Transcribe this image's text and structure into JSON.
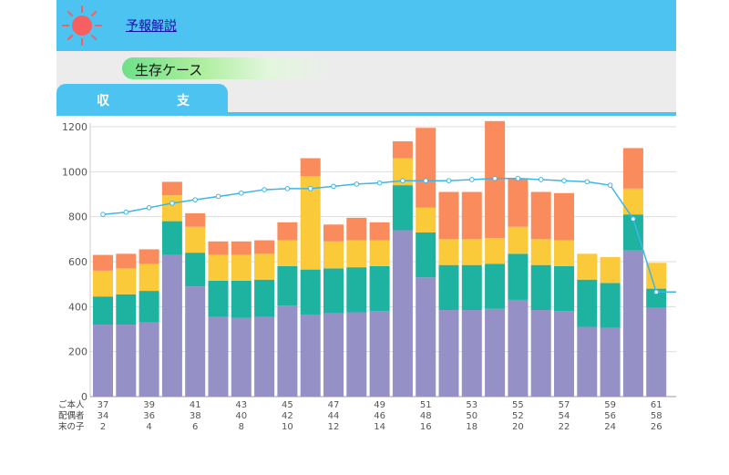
{
  "header": {
    "link_label": "予報解説",
    "sun_icon": "sun-icon"
  },
  "case_label": "生存ケース",
  "tabs": [
    {
      "chars": [
        "収",
        "支"
      ]
    }
  ],
  "colors": {
    "header": "#4cc3f0",
    "s1": "#9590c5",
    "s2": "#1eb2a0",
    "s3": "#fbca3a",
    "s4": "#f98b5c",
    "line": "#3bb6ea"
  },
  "chart_data": {
    "type": "bar",
    "stacked": true,
    "ylim": [
      0,
      1200
    ],
    "yticks": [
      0,
      200,
      400,
      600,
      800,
      1000,
      1200
    ],
    "grid": true,
    "row_labels": [
      "ご本人",
      "配偶者",
      "末の子"
    ],
    "label_rows": [
      [
        "37",
        "",
        "39",
        "",
        "41",
        "",
        "43",
        "",
        "45",
        "",
        "47",
        "",
        "49",
        "",
        "51",
        "",
        "53",
        "",
        "55",
        "",
        "57",
        "",
        "59",
        "",
        "61"
      ],
      [
        "34",
        "",
        "36",
        "",
        "38",
        "",
        "40",
        "",
        "42",
        "",
        "44",
        "",
        "46",
        "",
        "48",
        "",
        "50",
        "",
        "52",
        "",
        "54",
        "",
        "56",
        "",
        "58"
      ],
      [
        "2",
        "",
        "4",
        "",
        "6",
        "",
        "8",
        "",
        "10",
        "",
        "12",
        "",
        "14",
        "",
        "16",
        "",
        "18",
        "",
        "20",
        "",
        "22",
        "",
        "24",
        "",
        "26"
      ]
    ],
    "series": [
      {
        "values": [
          320,
          320,
          330,
          630,
          490,
          355,
          350,
          355,
          405,
          365,
          370,
          375,
          380,
          740,
          530,
          385,
          385,
          390,
          430,
          385,
          380,
          310,
          305,
          650,
          395
        ]
      },
      {
        "values": [
          125,
          135,
          140,
          150,
          150,
          160,
          165,
          165,
          175,
          200,
          200,
          200,
          200,
          200,
          200,
          200,
          200,
          200,
          205,
          200,
          200,
          210,
          200,
          160,
          85
        ]
      },
      {
        "values": [
          115,
          115,
          120,
          115,
          115,
          115,
          115,
          115,
          115,
          415,
          120,
          120,
          115,
          120,
          110,
          115,
          115,
          115,
          120,
          115,
          115,
          115,
          115,
          115,
          115
        ]
      },
      {
        "values": [
          70,
          65,
          65,
          60,
          60,
          60,
          60,
          60,
          80,
          80,
          75,
          100,
          80,
          75,
          355,
          210,
          210,
          520,
          215,
          210,
          210,
          0,
          0,
          180,
          0
        ]
      }
    ],
    "line": [
      810,
      820,
      840,
      860,
      875,
      890,
      905,
      920,
      925,
      925,
      935,
      945,
      950,
      960,
      960,
      960,
      965,
      970,
      970,
      965,
      960,
      955,
      940,
      790,
      465
    ]
  }
}
